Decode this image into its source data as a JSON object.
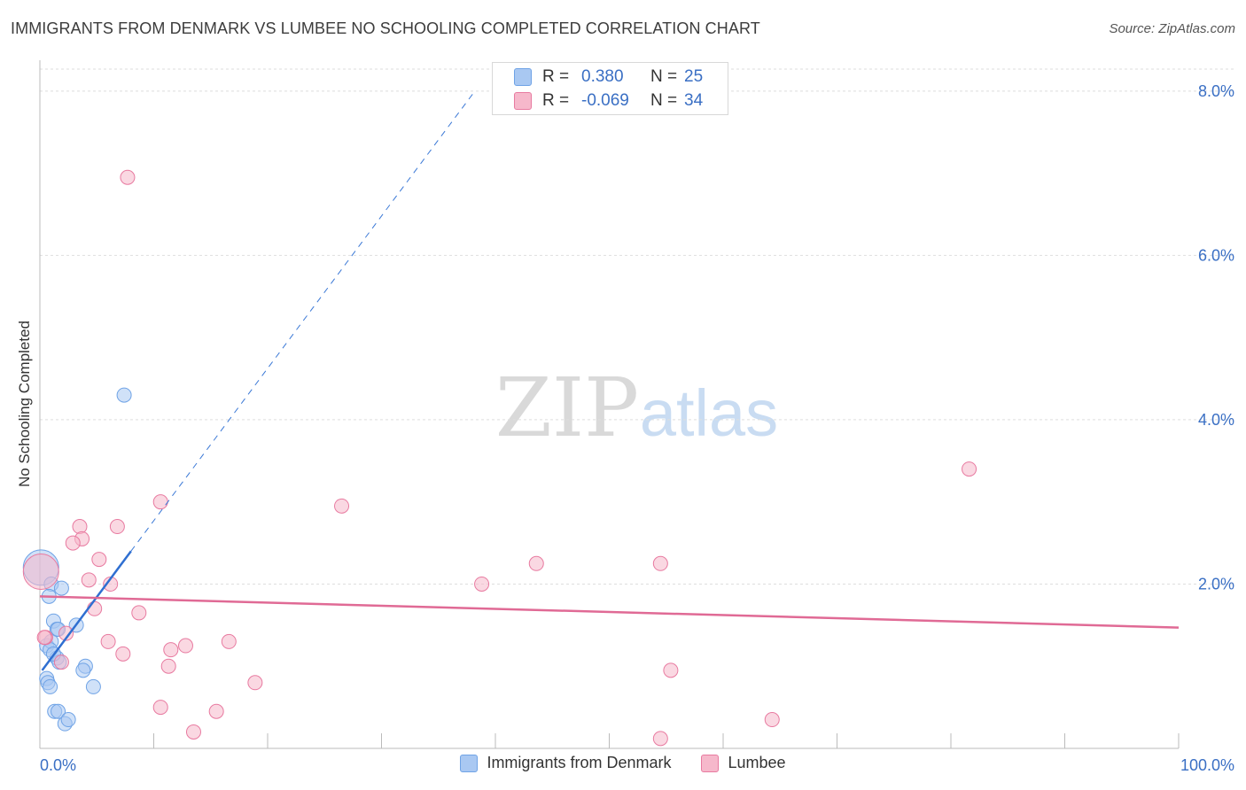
{
  "title": "IMMIGRANTS FROM DENMARK VS LUMBEE NO SCHOOLING COMPLETED CORRELATION CHART",
  "source": "Source: ZipAtlas.com",
  "watermark": {
    "zip": "ZIP",
    "atlas": "atlas"
  },
  "stats": [
    {
      "r_label": "R =",
      "r_value": "0.380",
      "n_label": "N =",
      "n_value": "25",
      "color": "#a9c8f2"
    },
    {
      "r_label": "R =",
      "r_value": "-0.069",
      "n_label": "N =",
      "n_value": "34",
      "color": "#f6b8cb"
    }
  ],
  "chart_data": {
    "type": "scatter",
    "title": "IMMIGRANTS FROM DENMARK VS LUMBEE NO SCHOOLING COMPLETED CORRELATION CHART",
    "xlabel": "",
    "ylabel": "No Schooling Completed",
    "xlim": [
      0,
      100
    ],
    "ylim": [
      0,
      8.3
    ],
    "x_tick_labels": [
      "0.0%",
      "100.0%"
    ],
    "y_ticks": [
      2,
      4,
      6,
      8
    ],
    "y_tick_labels": [
      "2.0%",
      "4.0%",
      "6.0%",
      "8.0%"
    ],
    "grid": true,
    "legend_position": "bottom",
    "series": [
      {
        "name": "Immigrants from Denmark",
        "color": "#6fa3e6",
        "fill": "#a9c8f2",
        "points": [
          {
            "x": 0.1,
            "y": 2.2,
            "big": true
          },
          {
            "x": 1.0,
            "y": 2.0
          },
          {
            "x": 1.9,
            "y": 1.95
          },
          {
            "x": 0.8,
            "y": 1.85
          },
          {
            "x": 1.2,
            "y": 1.55
          },
          {
            "x": 1.5,
            "y": 1.45
          },
          {
            "x": 3.2,
            "y": 1.5
          },
          {
            "x": 0.6,
            "y": 1.25
          },
          {
            "x": 1.0,
            "y": 1.3
          },
          {
            "x": 0.9,
            "y": 1.2
          },
          {
            "x": 1.5,
            "y": 1.1
          },
          {
            "x": 1.7,
            "y": 1.05
          },
          {
            "x": 4.0,
            "y": 1.0
          },
          {
            "x": 3.8,
            "y": 0.95
          },
          {
            "x": 0.6,
            "y": 0.85
          },
          {
            "x": 0.7,
            "y": 0.8
          },
          {
            "x": 0.9,
            "y": 0.75
          },
          {
            "x": 4.7,
            "y": 0.75
          },
          {
            "x": 1.3,
            "y": 0.45
          },
          {
            "x": 1.6,
            "y": 0.45
          },
          {
            "x": 2.2,
            "y": 0.3
          },
          {
            "x": 2.5,
            "y": 0.35
          },
          {
            "x": 7.4,
            "y": 4.3
          },
          {
            "x": 1.6,
            "y": 1.45
          },
          {
            "x": 1.2,
            "y": 1.15
          }
        ],
        "trend": {
          "x1": 0.2,
          "y1": 0.95,
          "x2": 8.0,
          "y2": 2.4,
          "dash_x2": 38.2,
          "dash_y2": 8.0
        }
      },
      {
        "name": "Lumbee",
        "color": "#e87aa0",
        "fill": "#f6b8cb",
        "points": [
          {
            "x": 0.1,
            "y": 2.15,
            "big": true
          },
          {
            "x": 7.7,
            "y": 6.95
          },
          {
            "x": 10.6,
            "y": 3.0
          },
          {
            "x": 26.5,
            "y": 2.95
          },
          {
            "x": 81.6,
            "y": 3.4
          },
          {
            "x": 3.5,
            "y": 2.7
          },
          {
            "x": 6.8,
            "y": 2.7
          },
          {
            "x": 3.7,
            "y": 2.55
          },
          {
            "x": 2.9,
            "y": 2.5
          },
          {
            "x": 5.2,
            "y": 2.3
          },
          {
            "x": 4.3,
            "y": 2.05
          },
          {
            "x": 6.2,
            "y": 2.0
          },
          {
            "x": 38.8,
            "y": 2.0
          },
          {
            "x": 43.6,
            "y": 2.25
          },
          {
            "x": 54.5,
            "y": 2.25
          },
          {
            "x": 4.8,
            "y": 1.7
          },
          {
            "x": 8.7,
            "y": 1.65
          },
          {
            "x": 2.3,
            "y": 1.4
          },
          {
            "x": 0.5,
            "y": 1.35
          },
          {
            "x": 6.0,
            "y": 1.3
          },
          {
            "x": 11.5,
            "y": 1.2
          },
          {
            "x": 12.8,
            "y": 1.25
          },
          {
            "x": 16.6,
            "y": 1.3
          },
          {
            "x": 7.3,
            "y": 1.15
          },
          {
            "x": 1.9,
            "y": 1.05
          },
          {
            "x": 11.3,
            "y": 1.0
          },
          {
            "x": 55.4,
            "y": 0.95
          },
          {
            "x": 18.9,
            "y": 0.8
          },
          {
            "x": 10.6,
            "y": 0.5
          },
          {
            "x": 15.5,
            "y": 0.45
          },
          {
            "x": 64.3,
            "y": 0.35
          },
          {
            "x": 13.5,
            "y": 0.2
          },
          {
            "x": 54.5,
            "y": 0.12
          },
          {
            "x": 0.4,
            "y": 1.35
          }
        ],
        "trend": {
          "x1": 0.0,
          "y1": 1.85,
          "x2": 100.0,
          "y2": 1.47
        }
      }
    ]
  }
}
